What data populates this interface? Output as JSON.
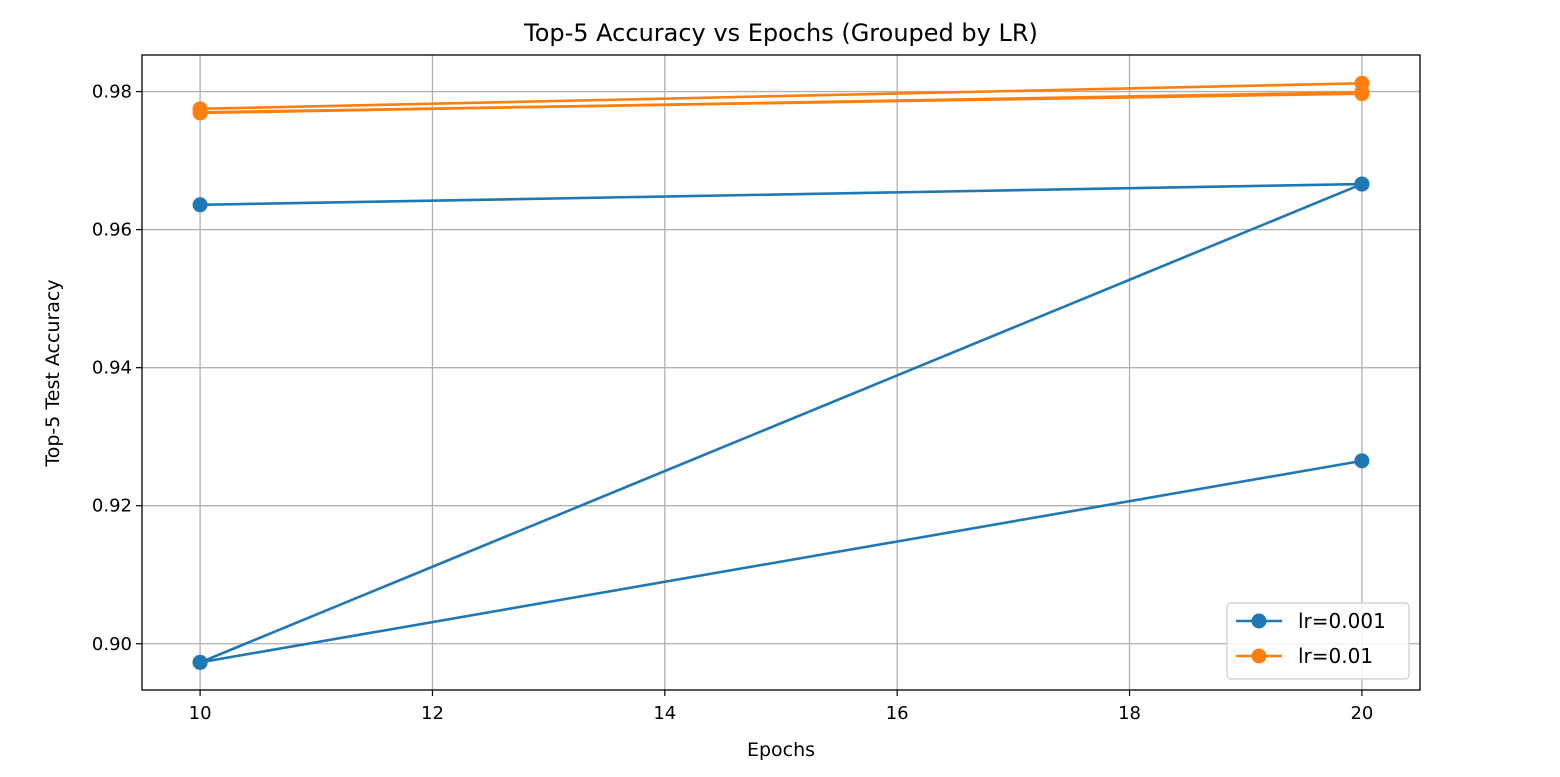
{
  "chart_data": {
    "type": "line",
    "title": "Top-5 Accuracy vs Epochs (Grouped by LR)",
    "xlabel": "Epochs",
    "ylabel": "Top-5 Test Accuracy",
    "xlim": [
      9.5,
      20.5
    ],
    "ylim": [
      0.8933,
      0.9853
    ],
    "xticks": [
      10,
      12,
      14,
      16,
      18,
      20
    ],
    "yticks": [
      0.9,
      0.92,
      0.94,
      0.96,
      0.98
    ],
    "xtick_labels": [
      "10",
      "12",
      "14",
      "16",
      "18",
      "20"
    ],
    "ytick_labels": [
      "0.90",
      "0.92",
      "0.94",
      "0.96",
      "0.98"
    ],
    "grid": true,
    "legend_position": "lower right",
    "legend": [
      {
        "label": "lr=0.001",
        "color": "#1f77b4"
      },
      {
        "label": "lr=0.01",
        "color": "#ff7f0e"
      }
    ],
    "series": [
      {
        "group": "lr=0.001",
        "color": "#1f77b4",
        "x": [
          10,
          20
        ],
        "y": [
          0.9636,
          0.9666
        ]
      },
      {
        "group": "lr=0.001",
        "color": "#1f77b4",
        "x": [
          10,
          20
        ],
        "y": [
          0.8973,
          0.9666
        ]
      },
      {
        "group": "lr=0.001",
        "color": "#1f77b4",
        "x": [
          10,
          20
        ],
        "y": [
          0.8973,
          0.9265
        ]
      },
      {
        "group": "lr=0.01",
        "color": "#ff7f0e",
        "x": [
          10,
          20
        ],
        "y": [
          0.9775,
          0.9812
        ]
      },
      {
        "group": "lr=0.01",
        "color": "#ff7f0e",
        "x": [
          10,
          20
        ],
        "y": [
          0.9769,
          0.9799
        ]
      },
      {
        "group": "lr=0.01",
        "color": "#ff7f0e",
        "x": [
          10,
          20
        ],
        "y": [
          0.977,
          0.9797
        ]
      }
    ]
  }
}
